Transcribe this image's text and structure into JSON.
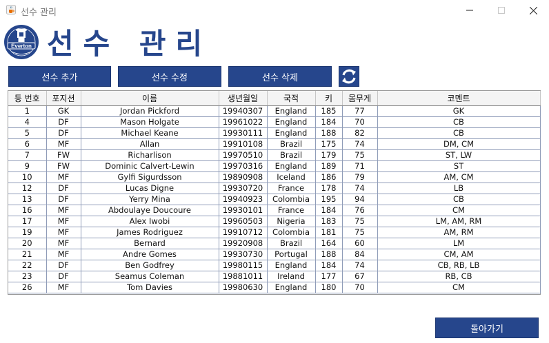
{
  "window": {
    "title": "선수 관리"
  },
  "logo": {
    "text": "Everton"
  },
  "header": {
    "title": "선수 관리"
  },
  "toolbar": {
    "add_label": "선수 추가",
    "edit_label": "선수 수정",
    "delete_label": "선수 삭제"
  },
  "table": {
    "columns": [
      "등 번호",
      "포지션",
      "이름",
      "생년월일",
      "국적",
      "키",
      "몸무게",
      "코멘트"
    ],
    "rows": [
      [
        "1",
        "GK",
        "Jordan Pickford",
        "19940307",
        "England",
        "185",
        "77",
        "GK"
      ],
      [
        "4",
        "DF",
        "Mason Holgate",
        "19961022",
        "England",
        "184",
        "70",
        "CB"
      ],
      [
        "5",
        "DF",
        "Michael Keane",
        "19930111",
        "England",
        "188",
        "82",
        "CB"
      ],
      [
        "6",
        "MF",
        "Allan",
        "19910108",
        "Brazil",
        "175",
        "74",
        "DM, CM"
      ],
      [
        "7",
        "FW",
        "Richarlison",
        "19970510",
        "Brazil",
        "179",
        "75",
        "ST, LW"
      ],
      [
        "9",
        "FW",
        "Dominic Calvert-Lewin",
        "19970316",
        "England",
        "189",
        "71",
        "ST"
      ],
      [
        "10",
        "MF",
        "Gylfi Sigurdsson",
        "19890908",
        "Iceland",
        "186",
        "79",
        "AM, CM"
      ],
      [
        "12",
        "DF",
        "Lucas Digne",
        "19930720",
        "France",
        "178",
        "74",
        "LB"
      ],
      [
        "13",
        "DF",
        "Yerry Mina",
        "19940923",
        "Colombia",
        "195",
        "94",
        "CB"
      ],
      [
        "16",
        "MF",
        "Abdoulaye Doucoure",
        "19930101",
        "France",
        "184",
        "76",
        "CM"
      ],
      [
        "17",
        "MF",
        "Alex Iwobi",
        "19960503",
        "Nigeria",
        "183",
        "75",
        "LM, AM, RM"
      ],
      [
        "19",
        "MF",
        "James Rodriguez",
        "19910712",
        "Colombia",
        "181",
        "75",
        "AM, RM"
      ],
      [
        "20",
        "MF",
        "Bernard",
        "19920908",
        "Brazil",
        "164",
        "60",
        "LM"
      ],
      [
        "21",
        "MF",
        "Andre Gomes",
        "19930730",
        "Portugal",
        "188",
        "84",
        "CM, AM"
      ],
      [
        "22",
        "DF",
        "Ben Godfrey",
        "19980115",
        "England",
        "184",
        "74",
        "CB, RB, LB"
      ],
      [
        "23",
        "DF",
        "Seamus Coleman",
        "19881011",
        "Ireland",
        "177",
        "67",
        "RB, CB"
      ],
      [
        "26",
        "MF",
        "Tom Davies",
        "19980630",
        "England",
        "180",
        "70",
        "CM"
      ]
    ]
  },
  "footer": {
    "back_label": "돌아가기"
  },
  "colors": {
    "brand": "#26468c",
    "grid": "#8f9cb8",
    "header_bg": "#f4f4f4"
  },
  "icons": {
    "app": "java-cup-icon",
    "refresh": "refresh-icon",
    "minimize": "minimize-icon",
    "maximize": "maximize-icon",
    "close": "close-icon"
  }
}
